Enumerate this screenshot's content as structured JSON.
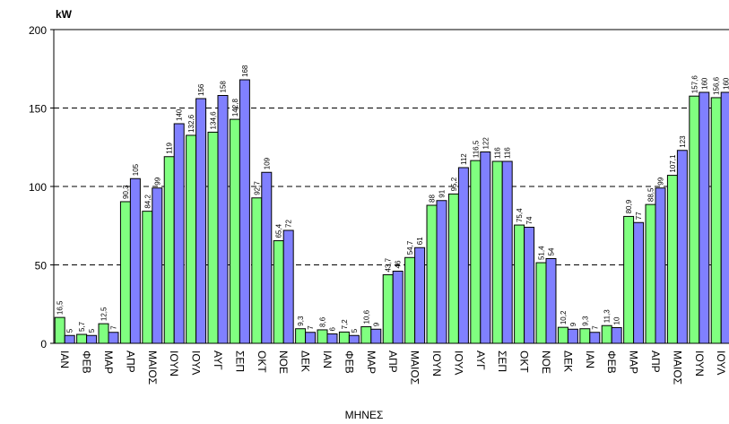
{
  "chart_data": {
    "type": "bar",
    "y_label": "kW",
    "x_label": "ΜΗΝΕΣ",
    "categories": [
      "ΙΑΝ",
      "ΦΕΒ",
      "ΜΑΡ",
      "ΑΠΡ",
      "ΜΑΙΟΣ",
      "ΙΟΥΝ",
      "ΙΟΥΛ",
      "ΑΥΓ",
      "ΣΕΠ",
      "ΟΚΤ",
      "ΝΟΕ",
      "ΔΕΚ",
      "ΙΑΝ",
      "ΦΕΒ",
      "ΜΑΡ",
      "ΑΠΡ",
      "ΜΑΙΟΣ",
      "ΙΟΥΝ",
      "ΙΟΥΛ",
      "ΑΥΓ",
      "ΣΕΠ",
      "ΟΚΤ",
      "ΝΟΕ",
      "ΔΕΚ",
      "ΙΑΝ",
      "ΦΕΒ",
      "ΜΑΡ",
      "ΑΠΡ",
      "ΜΑΙΟΣ",
      "ΙΟΥΝ",
      "ΙΟΥΛ"
    ],
    "series": [
      {
        "color": "#80ff80",
        "values": [
          16.5,
          5.7,
          12.5,
          90.3,
          84.2,
          119,
          132.6,
          134.6,
          142.8,
          92.7,
          65.4,
          9.3,
          8.6,
          7.2,
          10.6,
          43.7,
          54.7,
          88,
          95.2,
          116.5,
          116,
          75.4,
          51.4,
          10.2,
          9.3,
          11.3,
          80.9,
          88.5,
          107.1,
          157.6,
          156.6
        ],
        "value_labels": [
          "16,5",
          "5,7",
          "12,5",
          "90,3",
          "84,2",
          "119",
          "132,6",
          "134,6",
          "142,8",
          "92,7",
          "65,4",
          "9,3",
          "8,6",
          "7,2",
          "10,6",
          "43,7",
          "54,7",
          "88",
          "95,2",
          "116,5",
          "116",
          "75,4",
          "51,4",
          "10,2",
          "9,3",
          "11,3",
          "80,9",
          "88,5",
          "107,1",
          "157,6",
          "156,6"
        ]
      },
      {
        "color": "#8080ff",
        "values": [
          5,
          5,
          7,
          105,
          99,
          140,
          156,
          158,
          168,
          109,
          72,
          7,
          6,
          5,
          9,
          46,
          61,
          91,
          112,
          122,
          116,
          74,
          54,
          9,
          7,
          10,
          77,
          99,
          123,
          160,
          160
        ]
      }
    ],
    "ylim": [
      0,
      200
    ],
    "yticks": [
      0,
      50,
      100,
      150,
      200
    ],
    "grid": true
  }
}
